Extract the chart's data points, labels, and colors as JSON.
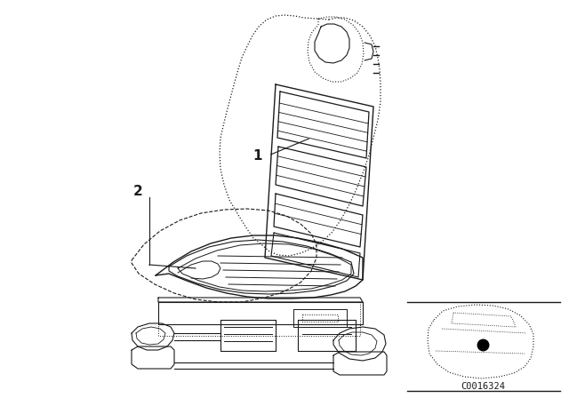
{
  "bg_color": "#ffffff",
  "line_color": "#1a1a1a",
  "label1_text": "1",
  "label2_text": "2",
  "catalog_code": "C0016324",
  "fig_width": 6.4,
  "fig_height": 4.48,
  "dpi": 100
}
